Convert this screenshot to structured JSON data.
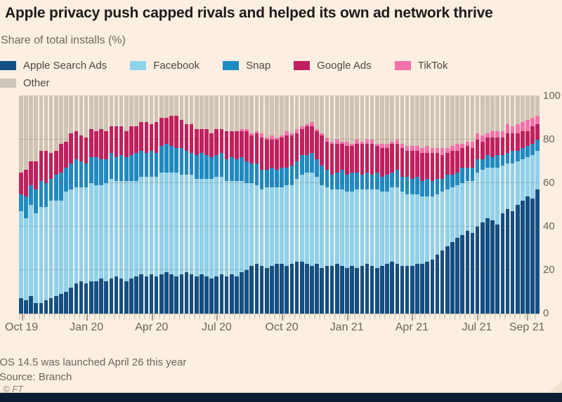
{
  "page": {
    "title": "Apple privacy push capped rivals and helped its own ad network thrive",
    "subtitle": "Share of total installs (%)",
    "footnote": "iOS 14.5 was launched April 26 this year",
    "source": "Source: Branch",
    "copyright": "© FT"
  },
  "colors": {
    "background": "#fcefe2",
    "apple_search_ads": "#124f85",
    "facebook": "#8fd2ec",
    "snap": "#1e8bc3",
    "google_ads": "#c02060",
    "tiktok": "#f272aa",
    "other": "#cfc3b4",
    "footer_bar": "#0c1e33"
  },
  "legend": {
    "items": [
      {
        "label": "Apple Search Ads",
        "color": "#124f85"
      },
      {
        "label": "Facebook",
        "color": "#8fd2ec"
      },
      {
        "label": "Snap",
        "color": "#1e8bc3"
      },
      {
        "label": "Google Ads",
        "color": "#c02060"
      },
      {
        "label": "TikTok",
        "color": "#f272aa"
      },
      {
        "label": "Other",
        "color": "#ccc5bb"
      }
    ]
  },
  "chart_data": {
    "type": "bar",
    "variant": "stacked-weekly",
    "unit": "%",
    "title": "Share of total installs (%)",
    "y_axis": {
      "ticks": [
        0,
        20,
        40,
        60,
        80,
        100
      ],
      "range": [
        0,
        100
      ],
      "label_side": "right"
    },
    "x_axis": {
      "weeks": 104,
      "ticks": [
        {
          "label": "Oct 19",
          "week": 0
        },
        {
          "label": "Jan 20",
          "week": 13
        },
        {
          "label": "Apr 20",
          "week": 26
        },
        {
          "label": "Jul 20",
          "week": 39
        },
        {
          "label": "Oct 20",
          "week": 52
        },
        {
          "label": "Jan 21",
          "week": 65
        },
        {
          "label": "Apr 21",
          "week": 78
        },
        {
          "label": "Jul 21",
          "week": 91
        },
        {
          "label": "Sep 21",
          "week": 101
        }
      ]
    },
    "series": [
      {
        "name": "Apple Search Ads",
        "color": "#124f85",
        "values": [
          7,
          6,
          8,
          5,
          5,
          6,
          7,
          8,
          9,
          10,
          12,
          14,
          15,
          14,
          15,
          15,
          16,
          15,
          16,
          17,
          16,
          15,
          16,
          17,
          18,
          17,
          18,
          17,
          18,
          19,
          18,
          17,
          18,
          19,
          18,
          17,
          18,
          17,
          16,
          17,
          18,
          17,
          18,
          17,
          19,
          20,
          22,
          23,
          22,
          21,
          22,
          23,
          23,
          22,
          23,
          24,
          24,
          23,
          22,
          23,
          21,
          22,
          22,
          23,
          22,
          21,
          22,
          21,
          22,
          23,
          22,
          21,
          22,
          23,
          24,
          23,
          22,
          22,
          22,
          23,
          23,
          24,
          25,
          27,
          29,
          31,
          33,
          35,
          36,
          38,
          37,
          40,
          42,
          44,
          43,
          41,
          46,
          48,
          47,
          50,
          52,
          54,
          53,
          57
        ]
      },
      {
        "name": "Facebook",
        "color": "#8fd2ec",
        "values": [
          40,
          38,
          42,
          41,
          44,
          43,
          45,
          44,
          43,
          46,
          45,
          44,
          43,
          44,
          45,
          44,
          43,
          45,
          46,
          44,
          45,
          46,
          45,
          44,
          45,
          46,
          45,
          46,
          47,
          46,
          47,
          48,
          46,
          45,
          46,
          45,
          44,
          45,
          46,
          46,
          45,
          44,
          43,
          44,
          42,
          40,
          38,
          36,
          35,
          37,
          36,
          35,
          35,
          37,
          36,
          38,
          40,
          42,
          43,
          40,
          38,
          36,
          35,
          34,
          35,
          35,
          34,
          36,
          35,
          34,
          35,
          36,
          34,
          33,
          34,
          35,
          34,
          33,
          33,
          32,
          31,
          30,
          29,
          28,
          27,
          26,
          25,
          24,
          24,
          23,
          24,
          25,
          24,
          23,
          24,
          26,
          22,
          21,
          22,
          20,
          19,
          18,
          20,
          18
        ]
      },
      {
        "name": "Snap",
        "color": "#1e8bc3",
        "values": [
          8,
          10,
          9,
          11,
          12,
          11,
          10,
          12,
          13,
          11,
          12,
          13,
          12,
          11,
          12,
          13,
          12,
          11,
          12,
          11,
          12,
          11,
          12,
          13,
          12,
          11,
          12,
          11,
          12,
          13,
          12,
          11,
          12,
          11,
          10,
          11,
          12,
          11,
          10,
          10,
          11,
          10,
          11,
          10,
          11,
          10,
          9,
          10,
          9,
          8,
          9,
          8,
          9,
          8,
          9,
          8,
          9,
          8,
          9,
          8,
          9,
          8,
          7,
          8,
          9,
          8,
          9,
          8,
          7,
          8,
          7,
          8,
          7,
          8,
          7,
          8,
          7,
          8,
          7,
          8,
          7,
          8,
          7,
          7,
          6,
          7,
          6,
          6,
          7,
          6,
          6,
          6,
          5,
          6,
          5,
          6,
          5,
          5,
          6,
          5,
          5,
          5,
          5,
          5
        ]
      },
      {
        "name": "Google Ads",
        "color": "#c02060",
        "values": [
          10,
          12,
          11,
          13,
          14,
          15,
          12,
          11,
          13,
          12,
          14,
          13,
          12,
          12,
          13,
          12,
          14,
          13,
          12,
          14,
          13,
          12,
          13,
          12,
          13,
          14,
          12,
          14,
          13,
          12,
          14,
          15,
          13,
          12,
          13,
          12,
          11,
          12,
          11,
          12,
          11,
          13,
          12,
          13,
          12,
          14,
          13,
          14,
          15,
          14,
          13,
          14,
          14,
          15,
          14,
          13,
          12,
          13,
          12,
          13,
          14,
          13,
          14,
          13,
          12,
          13,
          12,
          13,
          14,
          13,
          14,
          12,
          13,
          12,
          13,
          12,
          13,
          12,
          13,
          12,
          13,
          12,
          13,
          12,
          11,
          10,
          11,
          10,
          9,
          10,
          9,
          9,
          8,
          8,
          9,
          8,
          8,
          9,
          8,
          8,
          8,
          7,
          8,
          7
        ]
      },
      {
        "name": "TikTok",
        "color": "#f272aa",
        "values": [
          0,
          0,
          0,
          0,
          0,
          0,
          0,
          0,
          0,
          0,
          0,
          0,
          0,
          0,
          0,
          0,
          0,
          0,
          0,
          0,
          0,
          0,
          0,
          0,
          0,
          0,
          0,
          0,
          0,
          0,
          0,
          0,
          0,
          0,
          0,
          0,
          0,
          0,
          0,
          0,
          0,
          0,
          0,
          0,
          1,
          1,
          1,
          1,
          2,
          1,
          2,
          1,
          1,
          2,
          1,
          2,
          1,
          1,
          2,
          1,
          1,
          2,
          1,
          2,
          1,
          2,
          1,
          2,
          1,
          2,
          2,
          1,
          2,
          2,
          1,
          2,
          2,
          2,
          2,
          2,
          2,
          3,
          2,
          2,
          3,
          2,
          2,
          3,
          2,
          2,
          3,
          3,
          3,
          2,
          3,
          3,
          3,
          4,
          3,
          4,
          4,
          5,
          4,
          4
        ]
      },
      {
        "name": "Other",
        "color": "#cfc3b4",
        "remainder": true,
        "values": []
      }
    ]
  }
}
